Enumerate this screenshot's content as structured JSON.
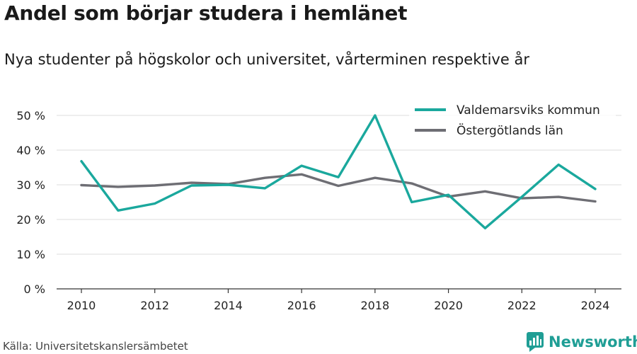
{
  "header": {
    "title": "Andel som börjar studera i hemlänet",
    "subtitle": "Nya studenter på högskolor och universitet, vårterminen respektive år"
  },
  "footer": {
    "source": "Källa: Universitetskanslersämbetet",
    "brand": "Newsworthy"
  },
  "colors": {
    "series_1": "#1aa89d",
    "series_2": "#6e6e74",
    "grid": "#dcdcdc",
    "axis": "#333333",
    "brand": "#1f9e95"
  },
  "chart_data": {
    "type": "line",
    "x": [
      2010,
      2011,
      2012,
      2013,
      2014,
      2015,
      2016,
      2017,
      2018,
      2019,
      2020,
      2021,
      2022,
      2023,
      2024
    ],
    "series": [
      {
        "name": "Valdemarsviks kommun",
        "values": [
          36.8,
          22.6,
          24.6,
          29.8,
          30.0,
          29.0,
          35.5,
          32.2,
          50.0,
          25.0,
          27.1,
          17.5,
          26.5,
          35.8,
          28.8
        ]
      },
      {
        "name": "Östergötlands län",
        "values": [
          29.9,
          29.4,
          29.8,
          30.6,
          30.2,
          32.0,
          33.0,
          29.7,
          32.0,
          30.4,
          26.6,
          28.1,
          26.1,
          26.5,
          25.2
        ]
      }
    ],
    "ylim": [
      0,
      50
    ],
    "yticks": [
      0,
      10,
      20,
      30,
      40,
      50
    ],
    "ytick_labels": [
      "0 %",
      "10 %",
      "20 %",
      "30 %",
      "40 %",
      "50 %"
    ],
    "xticks": [
      2010,
      2012,
      2014,
      2016,
      2018,
      2020,
      2022,
      2024
    ],
    "xtick_labels": [
      "2010",
      "2012",
      "2014",
      "2016",
      "2018",
      "2020",
      "2022",
      "2024"
    ],
    "grid": true,
    "legend": "top-right"
  }
}
